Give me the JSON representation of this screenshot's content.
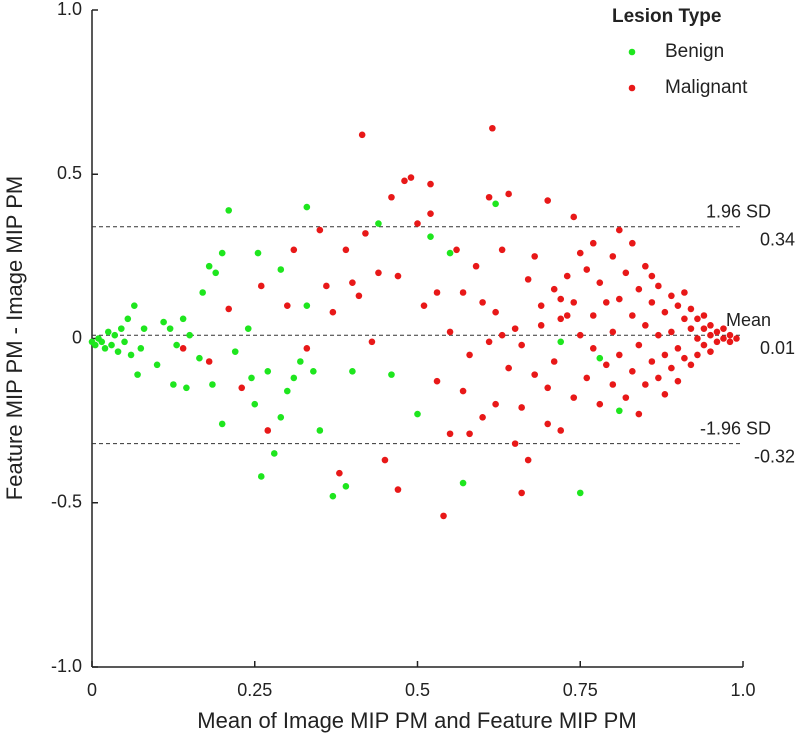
{
  "chart_data": {
    "type": "scatter",
    "xlabel": "Mean of Image MIP PM and Feature MIP PM",
    "ylabel": "Feature MIP PM - Image MIP PM",
    "xlim": [
      0,
      1
    ],
    "ylim": [
      -1,
      1
    ],
    "xticks": [
      0,
      0.25,
      0.5,
      0.75,
      {
        "value": 1,
        "label": "1.0"
      }
    ],
    "yticks": [
      {
        "value": -1,
        "label": "-1.0"
      },
      -0.5,
      0,
      0.5,
      {
        "value": 1,
        "label": "1.0"
      }
    ],
    "legend": {
      "title": "Lesion Type",
      "position": "upper right"
    },
    "reference_lines": [
      {
        "label": "1.96 SD",
        "value": 0.34
      },
      {
        "label": "Mean",
        "value": 0.01
      },
      {
        "label": "-1.96 SD",
        "value": -0.32
      }
    ],
    "series": [
      {
        "name": "Benign",
        "color": "#1ee61e",
        "x": [
          0.0,
          0.005,
          0.01,
          0.015,
          0.02,
          0.025,
          0.03,
          0.035,
          0.04,
          0.045,
          0.05,
          0.055,
          0.06,
          0.065,
          0.07,
          0.075,
          0.08,
          0.1,
          0.11,
          0.12,
          0.125,
          0.13,
          0.14,
          0.145,
          0.15,
          0.165,
          0.17,
          0.18,
          0.185,
          0.19,
          0.2,
          0.2,
          0.21,
          0.22,
          0.24,
          0.245,
          0.25,
          0.255,
          0.26,
          0.27,
          0.28,
          0.29,
          0.29,
          0.3,
          0.31,
          0.32,
          0.33,
          0.33,
          0.34,
          0.35,
          0.37,
          0.39,
          0.4,
          0.44,
          0.46,
          0.5,
          0.52,
          0.55,
          0.57,
          0.62,
          0.72,
          0.75,
          0.78,
          0.81
        ],
        "values": [
          -0.01,
          -0.02,
          0,
          -0.01,
          -0.03,
          0.02,
          -0.02,
          0.01,
          -0.04,
          0.03,
          -0.01,
          0.06,
          -0.05,
          0.1,
          -0.11,
          -0.03,
          0.03,
          -0.08,
          0.05,
          0.03,
          -0.14,
          -0.02,
          0.06,
          -0.15,
          0.01,
          -0.06,
          0.14,
          0.22,
          -0.14,
          0.2,
          0.26,
          -0.26,
          0.39,
          -0.04,
          0.03,
          -0.12,
          -0.2,
          0.26,
          -0.42,
          -0.1,
          -0.35,
          0.21,
          -0.24,
          -0.16,
          -0.12,
          -0.07,
          0.4,
          0.1,
          -0.1,
          -0.28,
          -0.48,
          -0.45,
          -0.1,
          0.35,
          -0.11,
          -0.23,
          0.31,
          0.26,
          -0.44,
          0.41,
          -0.01,
          -0.47,
          -0.06,
          -0.22
        ]
      },
      {
        "name": "Malignant",
        "color": "#e81818",
        "x": [
          0.14,
          0.18,
          0.21,
          0.23,
          0.26,
          0.27,
          0.3,
          0.31,
          0.33,
          0.35,
          0.36,
          0.37,
          0.38,
          0.39,
          0.4,
          0.41,
          0.415,
          0.42,
          0.43,
          0.44,
          0.45,
          0.46,
          0.47,
          0.47,
          0.48,
          0.49,
          0.5,
          0.51,
          0.52,
          0.52,
          0.53,
          0.54,
          0.55,
          0.55,
          0.56,
          0.57,
          0.58,
          0.58,
          0.59,
          0.6,
          0.61,
          0.615,
          0.62,
          0.63,
          0.64,
          0.65,
          0.65,
          0.66,
          0.66,
          0.67,
          0.68,
          0.68,
          0.69,
          0.7,
          0.7,
          0.71,
          0.71,
          0.72,
          0.72,
          0.73,
          0.73,
          0.74,
          0.74,
          0.75,
          0.75,
          0.76,
          0.76,
          0.77,
          0.77,
          0.77,
          0.78,
          0.78,
          0.79,
          0.79,
          0.8,
          0.8,
          0.8,
          0.81,
          0.81,
          0.81,
          0.82,
          0.82,
          0.83,
          0.83,
          0.83,
          0.84,
          0.84,
          0.84,
          0.85,
          0.85,
          0.85,
          0.86,
          0.86,
          0.86,
          0.87,
          0.87,
          0.87,
          0.88,
          0.88,
          0.88,
          0.89,
          0.89,
          0.89,
          0.9,
          0.9,
          0.9,
          0.91,
          0.91,
          0.91,
          0.92,
          0.92,
          0.92,
          0.93,
          0.93,
          0.93,
          0.94,
          0.94,
          0.94,
          0.95,
          0.95,
          0.95,
          0.96,
          0.96,
          0.97,
          0.97,
          0.98,
          0.98,
          0.99,
          0.61,
          0.63,
          0.66,
          0.69,
          0.53,
          0.57,
          0.6,
          0.62,
          0.64,
          0.67,
          0.7,
          0.72,
          0.74
        ],
        "values": [
          -0.03,
          -0.07,
          0.09,
          -0.15,
          0.16,
          -0.28,
          0.1,
          0.27,
          -0.03,
          0.33,
          0.16,
          0.08,
          -0.41,
          0.27,
          0.17,
          0.13,
          0.62,
          0.32,
          -0.01,
          0.2,
          -0.37,
          0.43,
          0.19,
          -0.46,
          0.48,
          0.49,
          0.35,
          0.1,
          0.38,
          0.47,
          0.14,
          -0.54,
          0.02,
          -0.29,
          0.27,
          0.14,
          -0.05,
          -0.29,
          0.22,
          0.11,
          0.43,
          0.64,
          -0.2,
          0.27,
          0.44,
          -0.32,
          0.03,
          -0.47,
          -0.21,
          0.18,
          -0.11,
          0.25,
          0.04,
          -0.26,
          0.42,
          0.15,
          -0.07,
          0.06,
          -0.28,
          0.19,
          0.07,
          -0.18,
          0.37,
          0.26,
          0.01,
          -0.12,
          0.21,
          0.29,
          0.07,
          -0.03,
          0.17,
          -0.2,
          0.11,
          -0.08,
          0.25,
          0.02,
          -0.14,
          0.33,
          0.12,
          -0.05,
          0.2,
          -0.18,
          0.07,
          -0.1,
          0.29,
          0.15,
          -0.02,
          -0.23,
          0.22,
          0.04,
          -0.14,
          0.11,
          -0.07,
          0.19,
          0.01,
          -0.12,
          0.16,
          0.08,
          -0.05,
          -0.17,
          0.13,
          0.02,
          -0.09,
          0.1,
          -0.03,
          -0.13,
          0.06,
          -0.06,
          0.14,
          0.03,
          -0.08,
          0.09,
          0,
          -0.05,
          0.06,
          0.03,
          -0.02,
          0.07,
          0.01,
          -0.04,
          0.04,
          0.02,
          -0.01,
          0,
          0.03,
          -0.01,
          0.01,
          0,
          -0.01,
          0.01,
          -0.02,
          0.1,
          -0.13,
          -0.16,
          -0.24,
          0.08,
          -0.09,
          -0.37,
          -0.15,
          0.12,
          0.11
        ]
      }
    ]
  }
}
